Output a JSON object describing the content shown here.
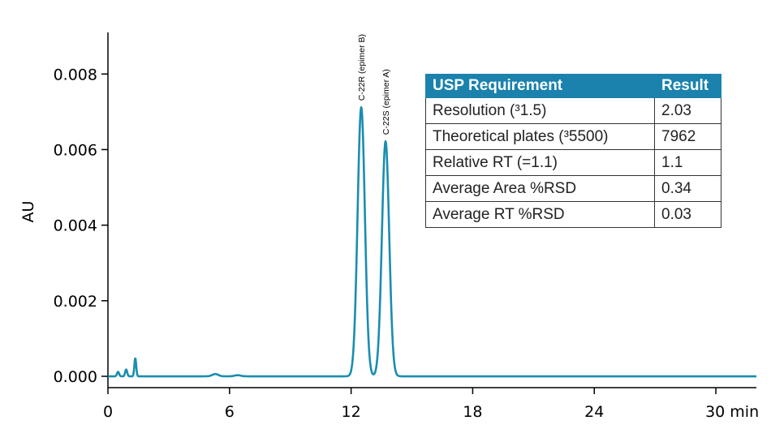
{
  "chart_data": {
    "type": "line",
    "ylabel": "AU",
    "xlabel": "min",
    "xlim": [
      0,
      32
    ],
    "ylim": [
      -0.0003,
      0.0091
    ],
    "x_ticks": [
      0,
      6,
      12,
      18,
      24,
      30
    ],
    "x_tick_labels": [
      "0",
      "6",
      "12",
      "18",
      "24",
      "30 min"
    ],
    "y_ticks": [
      0.0,
      0.002,
      0.004,
      0.006,
      0.008
    ],
    "y_tick_labels": [
      "0.000",
      "0.002",
      "0.004",
      "0.006",
      "0.008"
    ],
    "series_color": "#1a8db0",
    "baseline": 0.0,
    "peaks": [
      {
        "rt": 0.5,
        "height": 0.00012,
        "sigma": 0.05,
        "label": ""
      },
      {
        "rt": 0.9,
        "height": 0.00018,
        "sigma": 0.05,
        "label": ""
      },
      {
        "rt": 1.35,
        "height": 0.00048,
        "sigma": 0.045,
        "label": ""
      },
      {
        "rt": 5.3,
        "height": 6e-05,
        "sigma": 0.15,
        "label": ""
      },
      {
        "rt": 6.4,
        "height": 3e-05,
        "sigma": 0.15,
        "label": ""
      },
      {
        "rt": 12.5,
        "height": 0.00712,
        "sigma": 0.18,
        "label": "C-22R (epimer B)"
      },
      {
        "rt": 13.7,
        "height": 0.00622,
        "sigma": 0.18,
        "label": "C-22S (epimer A)"
      }
    ]
  },
  "table": {
    "header": {
      "requirement": "USP Requirement",
      "result": "Result"
    },
    "rows": [
      {
        "requirement": "Resolution (³1.5)",
        "result": "2.03"
      },
      {
        "requirement": "Theoretical plates (³5500)",
        "result": "7962"
      },
      {
        "requirement": "Relative RT (=1.1)",
        "result": "1.1"
      },
      {
        "requirement": "Average Area %RSD",
        "result": "0.34"
      },
      {
        "requirement": "Average RT %RSD",
        "result": "0.03"
      }
    ],
    "header_color": "#1a82ad"
  }
}
